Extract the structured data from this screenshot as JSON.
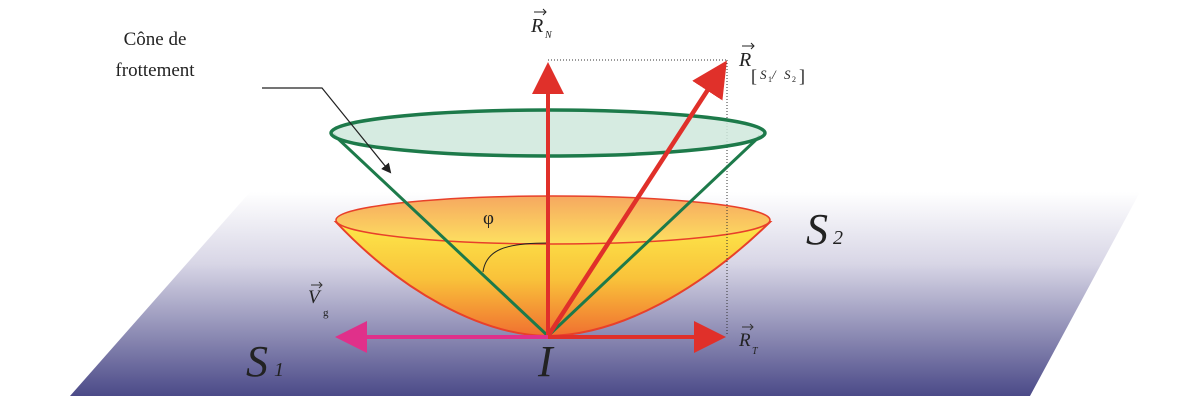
{
  "labels": {
    "cone_line1": "Cône de",
    "cone_line2": "frottement",
    "normal_force": "R",
    "normal_sub": "N",
    "resultant": "R",
    "resultant_sub_open": "[",
    "resultant_sub_s1": "S",
    "resultant_sub_1": "1",
    "resultant_sub_slash": " / ",
    "resultant_sub_s2": "S",
    "resultant_sub_2": "2",
    "resultant_sub_close": "]",
    "tangential_force": "R",
    "tangential_sub": "T",
    "sliding_velocity": "V",
    "sliding_sub": "g",
    "angle": "φ",
    "solid_1": "S",
    "solid_1_sub": "1",
    "solid_2": "S",
    "solid_2_sub": "2",
    "contact_point": "I"
  },
  "colors": {
    "plane_top": "#ffffff",
    "plane_bottom": "#4b4a88",
    "cone_outline": "#1d7a4a",
    "cone_fill": "#cfe8dc",
    "force_red": "#e0302a",
    "velocity_magenta": "#e0308a",
    "bowl_top": "#fde84a",
    "bowl_bottom": "#f07030"
  }
}
